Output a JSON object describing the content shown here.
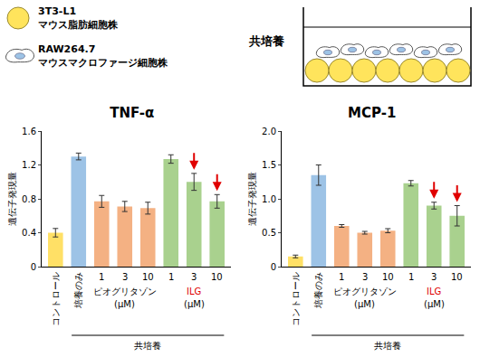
{
  "header": {
    "cells": [
      {
        "name": "3T3-L1",
        "desc": "マウス脂肪細胞株",
        "color": "#ffe45c"
      },
      {
        "name": "RAW264.7",
        "desc": "マウスマクロファージ細胞株",
        "color": "#9dc3e6"
      }
    ],
    "diagram_label": "共培養"
  },
  "chart_data": [
    {
      "type": "bar",
      "title": "TNF-α",
      "y_label": "遺伝子発現量",
      "categories": [
        "コントロール",
        "培養のみ",
        "1",
        "3",
        "10",
        "1",
        "3",
        "10"
      ],
      "values": [
        0.4,
        1.3,
        0.77,
        0.71,
        0.69,
        1.27,
        1.0,
        0.77
      ],
      "errors": [
        0.05,
        0.04,
        0.07,
        0.06,
        0.07,
        0.05,
        0.1,
        0.08
      ],
      "colors": [
        "#ffe066",
        "#9dc3e6",
        "#f4b183",
        "#f4b183",
        "#f4b183",
        "#a9d18e",
        "#a9d18e",
        "#a9d18e"
      ],
      "marked": [
        false,
        false,
        false,
        false,
        false,
        false,
        true,
        true
      ],
      "groups": [
        {
          "label": "ピオグリタゾン",
          "unit": "(μM)",
          "span": [
            2,
            4
          ],
          "color": "#000000"
        },
        {
          "label": "ILG",
          "unit": "(μM)",
          "span": [
            5,
            7
          ],
          "color": "#e00000"
        }
      ],
      "bottom_group": {
        "label": "共培養",
        "span": [
          1,
          7
        ]
      },
      "ylim": [
        0,
        1.6
      ],
      "yticks": [
        0,
        0.4,
        0.8,
        1.2,
        1.6
      ],
      "grid": false
    },
    {
      "type": "bar",
      "title": "MCP-1",
      "y_label": "遺伝子発現量",
      "categories": [
        "コントロール",
        "培養のみ",
        "1",
        "3",
        "10",
        "1",
        "3",
        "10"
      ],
      "values": [
        0.15,
        1.35,
        0.6,
        0.5,
        0.53,
        1.23,
        0.9,
        0.75
      ],
      "errors": [
        0.02,
        0.15,
        0.02,
        0.02,
        0.03,
        0.04,
        0.05,
        0.15
      ],
      "colors": [
        "#ffe066",
        "#9dc3e6",
        "#f4b183",
        "#f4b183",
        "#f4b183",
        "#a9d18e",
        "#a9d18e",
        "#a9d18e"
      ],
      "marked": [
        false,
        false,
        false,
        false,
        false,
        false,
        true,
        true
      ],
      "groups": [
        {
          "label": "ピオグリタゾン",
          "unit": "(μM)",
          "span": [
            2,
            4
          ],
          "color": "#000000"
        },
        {
          "label": "ILG",
          "unit": "(μM)",
          "span": [
            5,
            7
          ],
          "color": "#e00000"
        }
      ],
      "bottom_group": {
        "label": "共培養",
        "span": [
          1,
          7
        ]
      },
      "ylim": [
        0,
        2.0
      ],
      "yticks": [
        0,
        0.5,
        {
          "value": 1.0,
          "label": "1.0"
        },
        1.5,
        {
          "value": 2.0,
          "label": "2.0"
        }
      ],
      "grid": false
    }
  ]
}
